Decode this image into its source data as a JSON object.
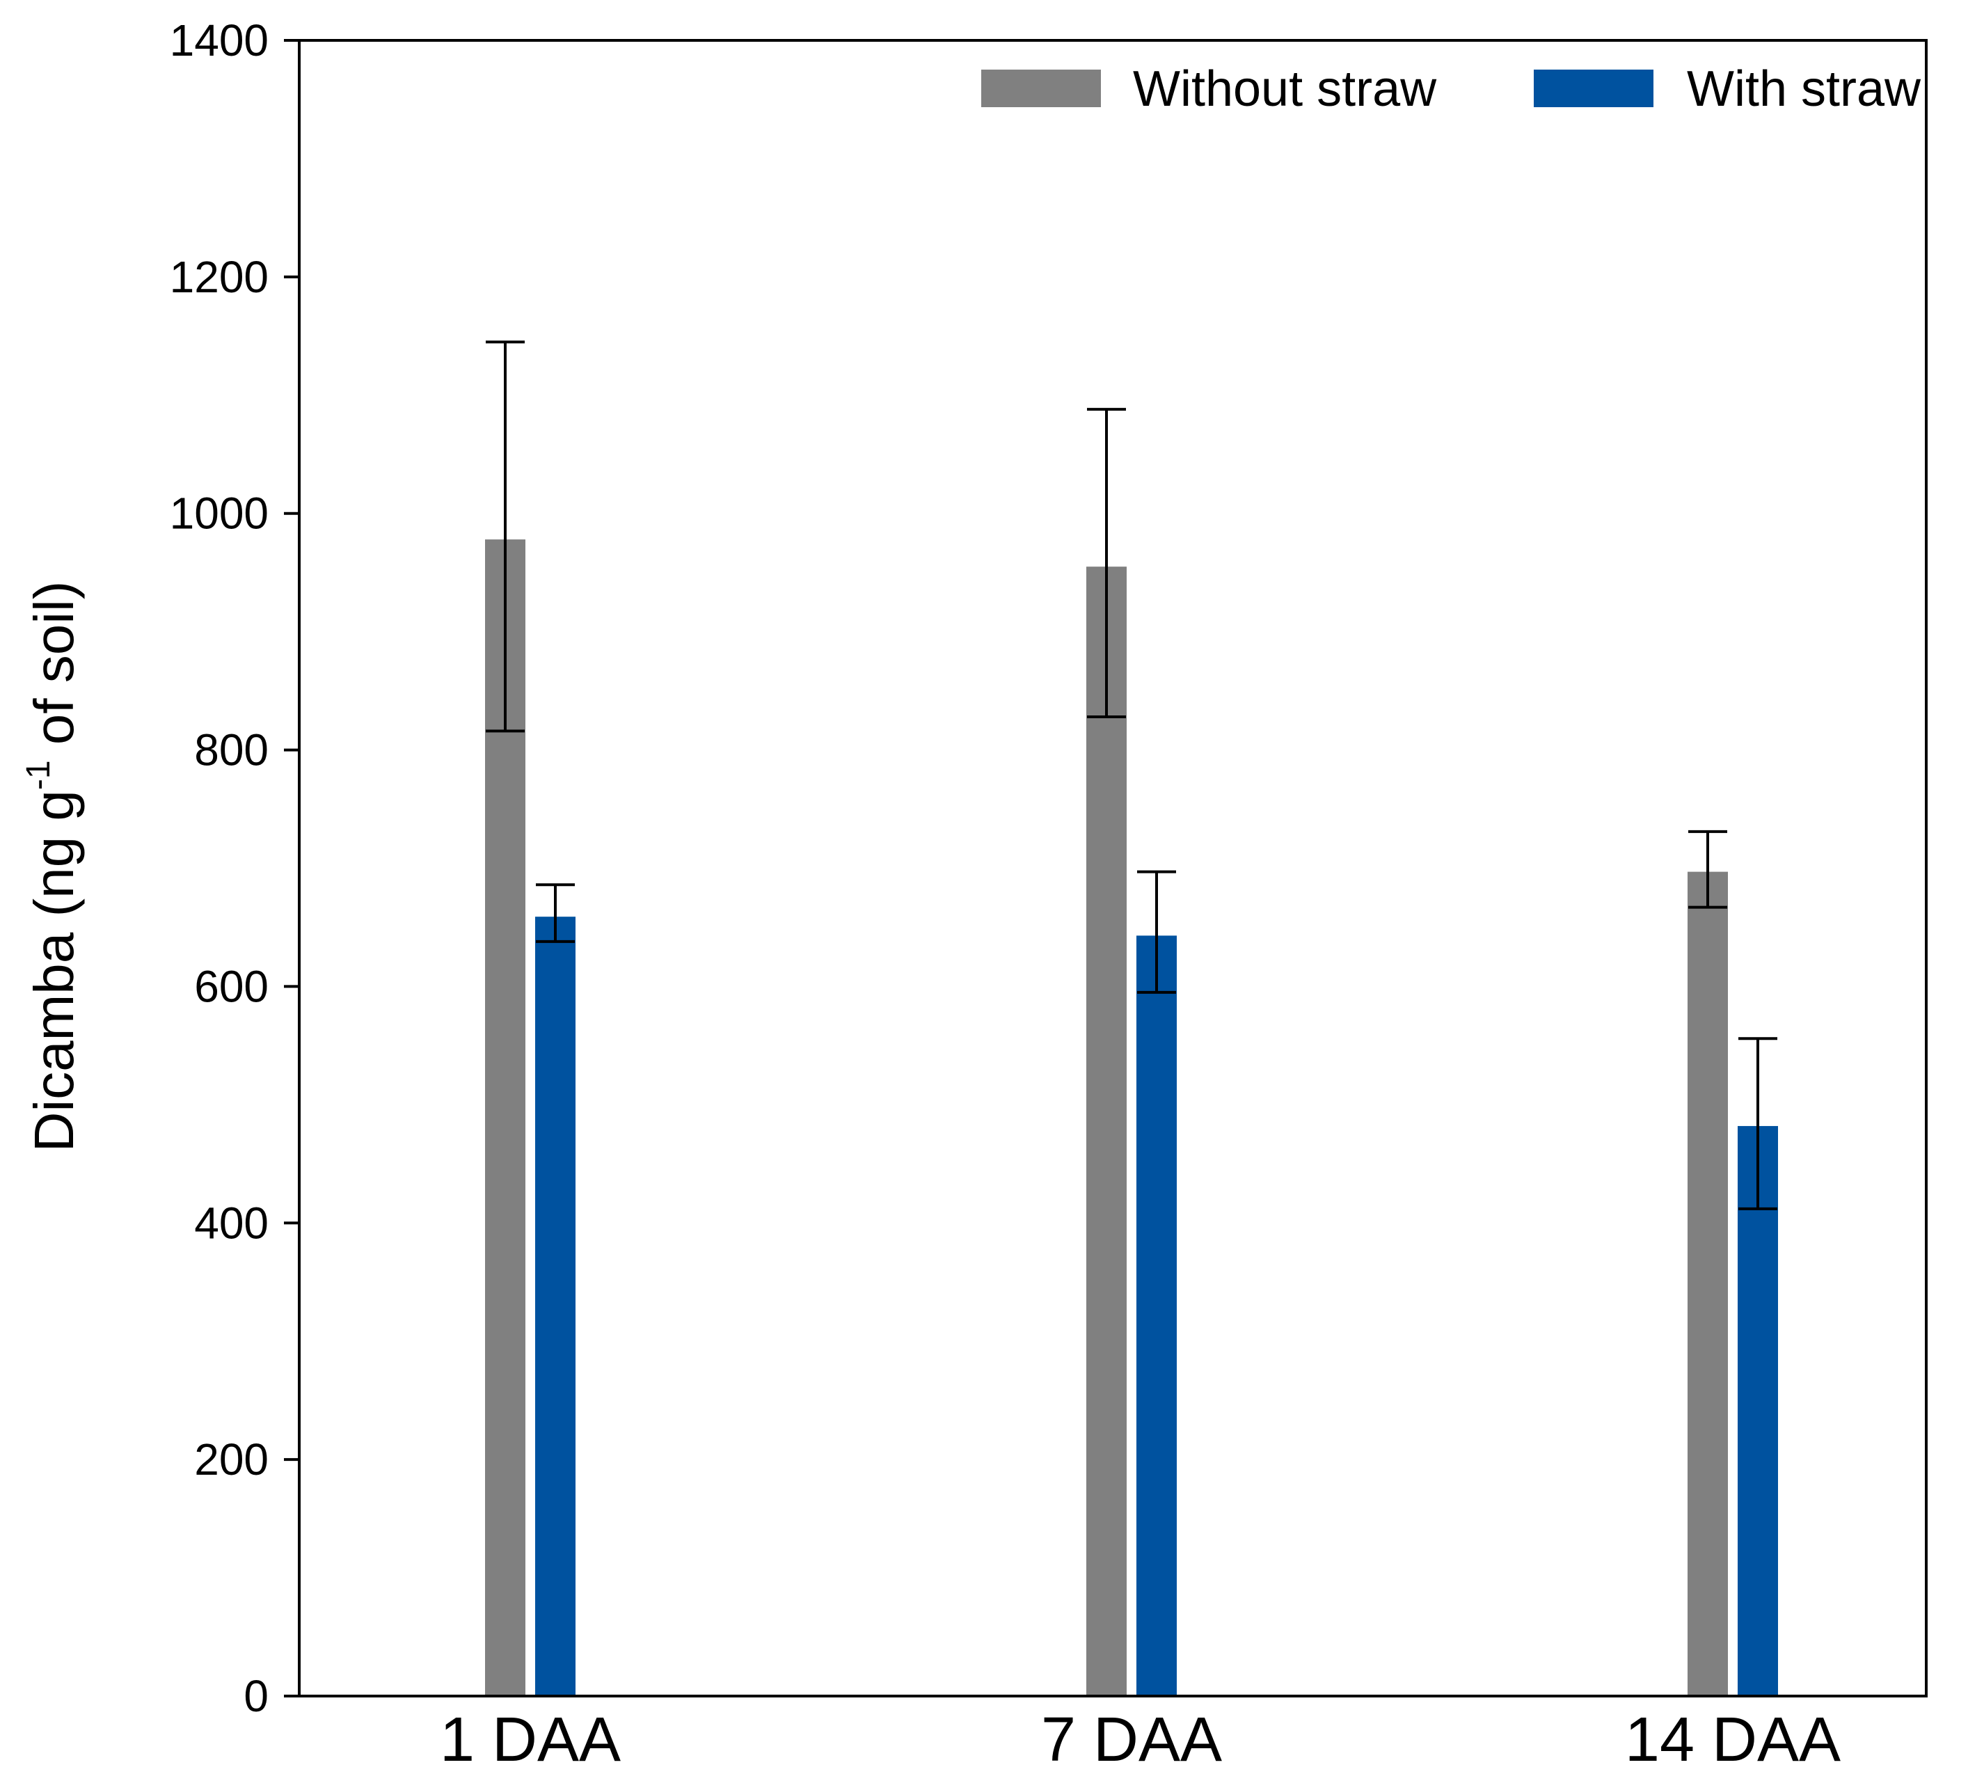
{
  "chart_data": {
    "type": "bar",
    "title": "",
    "xlabel": "",
    "ylabel": {
      "prefix": "Dicamba (ng g",
      "superscript": "-1",
      "suffix": " of soil)"
    },
    "ylim": [
      0,
      1400
    ],
    "yticks": [
      0,
      200,
      400,
      600,
      800,
      1000,
      1200,
      1400
    ],
    "grid": false,
    "legend_position": "top-right",
    "categories": [
      "1 DAA",
      "7 DAA",
      "14 DAA"
    ],
    "series": [
      {
        "name": "Without straw",
        "color": "#808080",
        "values": [
          978,
          955,
          697
        ],
        "error_upper": [
          1145,
          1088,
          731
        ],
        "error_lower": [
          816,
          828,
          667
        ]
      },
      {
        "name": "With straw",
        "color": "#00529F",
        "values": [
          659,
          643,
          482
        ],
        "error_upper": [
          686,
          697,
          556
        ],
        "error_lower": [
          638,
          595,
          412
        ]
      }
    ]
  }
}
